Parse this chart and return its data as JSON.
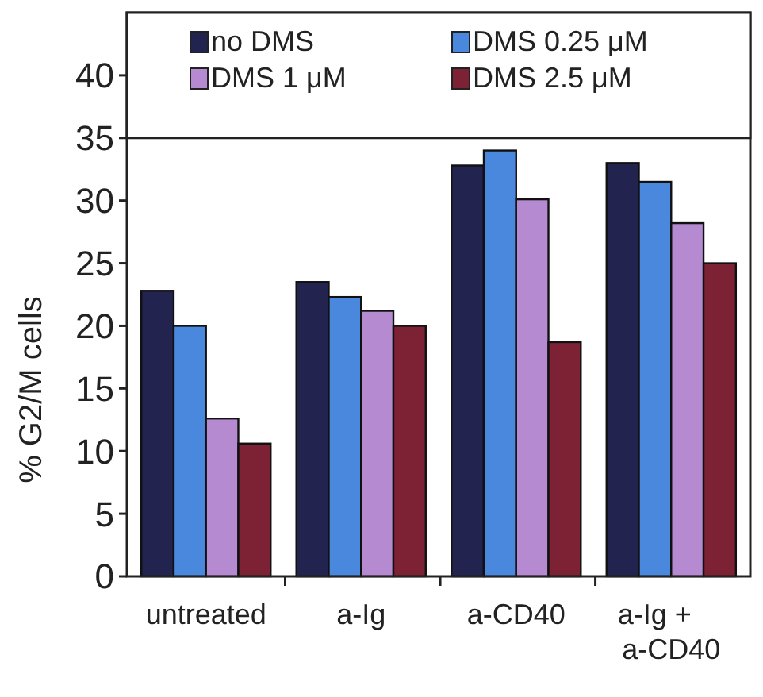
{
  "chart_data": {
    "type": "bar",
    "ylabel": "% G2/M cells",
    "categories": [
      "untreated",
      "a-Ig",
      "a-CD40",
      "a-Ig + a-CD40"
    ],
    "series": [
      {
        "name": "no DMS",
        "color": "#23234f",
        "values": [
          22.8,
          23.5,
          32.8,
          33.0
        ]
      },
      {
        "name": "DMS 0.25 μM",
        "color": "#4a88de",
        "values": [
          20.0,
          22.3,
          34.0,
          31.5
        ]
      },
      {
        "name": "DMS 1 μM",
        "color": "#b58ad0",
        "values": [
          12.6,
          21.2,
          30.1,
          28.2
        ]
      },
      {
        "name": "DMS 2.5 μM",
        "color": "#7c2234",
        "values": [
          10.6,
          20.0,
          18.7,
          25.0
        ]
      }
    ],
    "ylim": [
      0,
      45
    ],
    "yticks": [
      0,
      5,
      10,
      15,
      20,
      25,
      30,
      35,
      40
    ],
    "grid": false,
    "legend": "top"
  }
}
